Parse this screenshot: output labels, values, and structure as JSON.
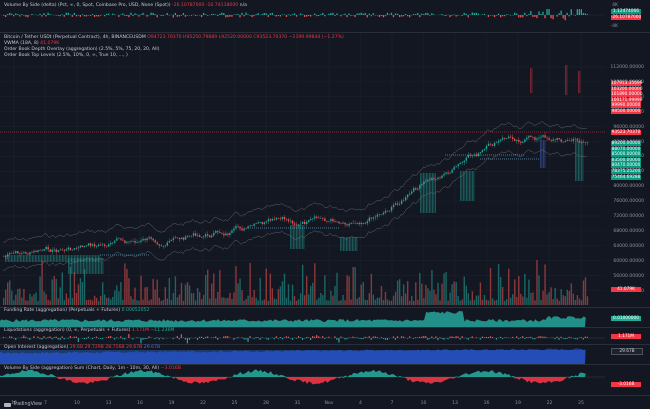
{
  "top": {
    "label": "Volume By Side (delta) (Pct, ∞, 0, Spot, Coinbase Pro, USD, None (Spot))",
    "value_a": "-26.10787000",
    "value_b": "-10.74118000",
    "value_c": "n/a",
    "ticks": [
      "0",
      "4K",
      "-4K"
    ],
    "tag_pos": "1.12474066",
    "tag_neg": "-26.10787000"
  },
  "main": {
    "symbol_line": "Bitcoin / Tether USDt (Perpetual Contract), 4h, BINANCEUSDM",
    "ohlc": "O94723.70370 H95250.79889 L92520.00000 C93523.70370 −1199.99844 (−1.27%)",
    "vwma": "VWMA (18A, 8)",
    "vwma_value": "41.079K",
    "ob_depth": "Order Book Depth Overlay (aggregation) (2.5%, 5%, 75, 20, 20, All)",
    "ob_levels": "Order Book Top Levels (2.5%, 10%, 0, ∞, True 10, ..., )",
    "yticks": [
      "112000.00000",
      "108000.00000",
      "104000.00000",
      "100000.00000",
      "96000.00000",
      "92000.00000",
      "88000.00000",
      "84000.00000",
      "80000.00000",
      "76000.00000",
      "72000.00000",
      "68000.00000",
      "64000.00000",
      "60000.00000",
      "56000.00000",
      "52000.00000"
    ],
    "red_tags": [
      "107913.35699",
      "103200.00000",
      "101890.00000",
      "100171.99999",
      "99990.00000",
      "98500.00000"
    ],
    "price_tag": "93523.70370",
    "green_tags": [
      "89200.00000",
      "88070.00000",
      "85000.00000",
      "83500.00000",
      "80470.00000",
      "78375.25200",
      "75464.69288"
    ],
    "vol_tag": "41.079K"
  },
  "funding": {
    "label": "Funding Rate (aggregation) (Perpetuals + Futures)",
    "value": "0.00052052",
    "tag": "0.01000000"
  },
  "liq": {
    "label": "Liquidations (aggregation) (0, ∞, Perpetuals + Futures)",
    "value_a": "1.171M",
    "value_b": "−11.236M",
    "tag": "1.171M"
  },
  "oi": {
    "label": "Open Interest (aggregation)",
    "values": [
      "29.6B",
      "29.729B",
      "28.716B",
      "29.67B",
      "29.67B"
    ],
    "tag": "29.67B"
  },
  "vbd": {
    "label": "Volume By Side (aggregation) Sum (Chart, Daily, 1m - 10m, 30, All)",
    "value": "−3.016B",
    "tag": "-3.016B"
  },
  "xaxis": [
    "10",
    "7",
    "10",
    "13",
    "16",
    "19",
    "22",
    "25",
    "28",
    "31",
    "Nov",
    "4",
    "7",
    "10",
    "13",
    "16",
    "19",
    "22",
    "25"
  ],
  "brand": "TradingView"
}
